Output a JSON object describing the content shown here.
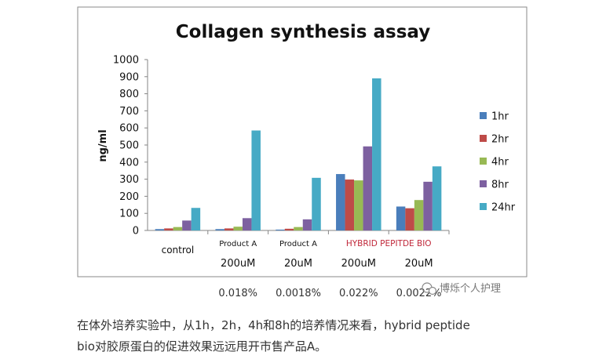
{
  "chart_data": {
    "type": "bar",
    "title": "Collagen synthesis assay",
    "ylabel": "ng/ml",
    "xlabel": "",
    "ylim": [
      0,
      1000
    ],
    "yticks": [
      "0",
      "100",
      "200",
      "300",
      "400",
      "500",
      "600",
      "700",
      "800",
      "900",
      "1000"
    ],
    "categories": [
      "control",
      "Product A",
      "Product A",
      "HYBRID PEPITDE BIO",
      ""
    ],
    "concentrations": [
      "",
      "200uM",
      "20uM",
      "200uM",
      "20uM"
    ],
    "percentages": [
      "",
      "0.018%",
      "0.0018%",
      "0.022%",
      "0.0022%"
    ],
    "series": [
      {
        "name": "1hr",
        "color": "#4a7ebb",
        "values": [
          8,
          8,
          5,
          330,
          140
        ]
      },
      {
        "name": "2hr",
        "color": "#be4b48",
        "values": [
          12,
          12,
          10,
          298,
          130
        ]
      },
      {
        "name": "4hr",
        "color": "#98b954",
        "values": [
          20,
          22,
          20,
          293,
          178
        ]
      },
      {
        "name": "8hr",
        "color": "#7d60a0",
        "values": [
          58,
          72,
          65,
          492,
          285
        ]
      },
      {
        "name": "24hr",
        "color": "#46aac5",
        "values": [
          132,
          585,
          308,
          890,
          375
        ]
      }
    ],
    "grid": false,
    "legend_position": "right"
  },
  "watermark": "博烁个人护理",
  "caption": {
    "line1": "在体外培养实验中，从1h，2h，4h和8h的培养情况来看，hybrid peptide",
    "line2": "bio对胶原蛋白的促进效果远远甩开市售产品A。"
  }
}
